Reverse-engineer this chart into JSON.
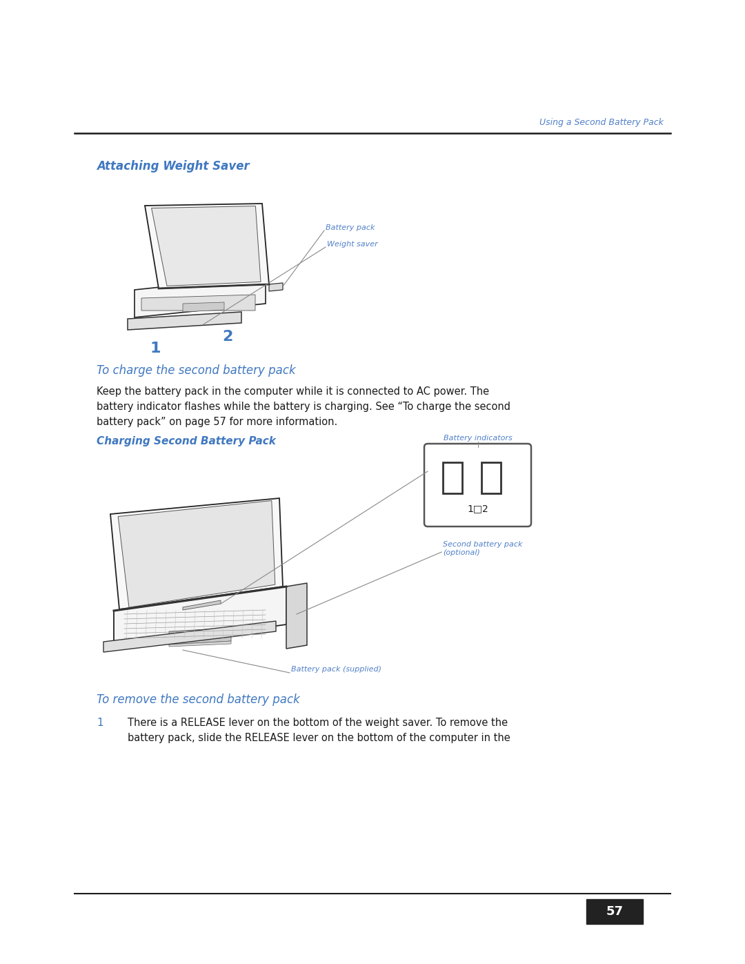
{
  "bg_color": "#ffffff",
  "text_color": "#000000",
  "blue_heading": "#4078c0",
  "blue_caption": "#4078c0",
  "blue_label": "#5080c8",
  "black": "#1a1a1a",
  "dark_line": "#1a1a1a",
  "page_number": "57",
  "header_right": "Using a Second Battery Pack",
  "title1": "Attaching Weight Saver",
  "title2": "To charge the second battery pack",
  "caption2": "Charging Second Battery Pack",
  "title3": "To remove the second battery pack",
  "body1_lines": [
    "Keep the battery pack in the computer while it is connected to AC power. The",
    "battery indicator flashes while the battery is charging. See “To charge the second",
    "battery pack” on page 57 for more information."
  ],
  "step1_num": "1",
  "step1_lines": [
    "There is a RELEASE lever on the bottom of the weight saver. To remove the",
    "battery pack, slide the RELEASE lever on the bottom of the computer in the"
  ],
  "lbl_battery_pack": "Battery pack",
  "lbl_weight_saver": "Weight saver",
  "lbl_batt_indicators": "Battery indicators",
  "lbl_second_batt": "Second battery pack\n(optional)",
  "lbl_batt_supplied": "Battery pack (supplied)"
}
